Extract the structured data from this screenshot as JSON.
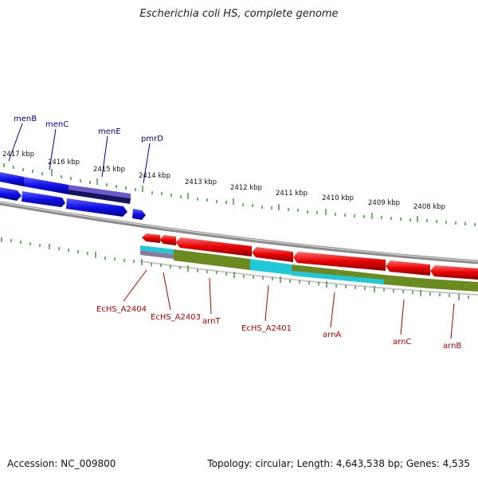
{
  "title": "Escherichia coli HS, complete genome",
  "footer": {
    "accession": "Accession: NC_009800",
    "summary": "Topology: circular; Length: 4,643,538 bp; Genes: 4,535"
  },
  "ruler": {
    "labels": [
      "2417 kbp",
      "2416 kbp",
      "2415 kbp",
      "2414 kbp",
      "2413 kbp",
      "2412 kbp",
      "2411 kbp",
      "2410 kbp",
      "2409 kbp",
      "2408 kbp"
    ]
  },
  "genes_top": [
    "menB",
    "menC",
    "menE",
    "pmrD"
  ],
  "genes_bottom": [
    "EcHS_A2404",
    "EcHS_A2403",
    "arnT",
    "EcHS_A2401",
    "arnA",
    "arnC",
    "arnB"
  ],
  "colors": {
    "forward_cds": "#1010e8",
    "reverse_cds": "#e80000",
    "backbone": "#8a8a8a",
    "ruler_tick": "#1a7a1a",
    "forward_label": "#00008b",
    "reverse_label": "#b00000",
    "feature_olive": "#6b8a20",
    "feature_cyan": "#20c8d8",
    "feature_purple": "#6a5acd"
  }
}
